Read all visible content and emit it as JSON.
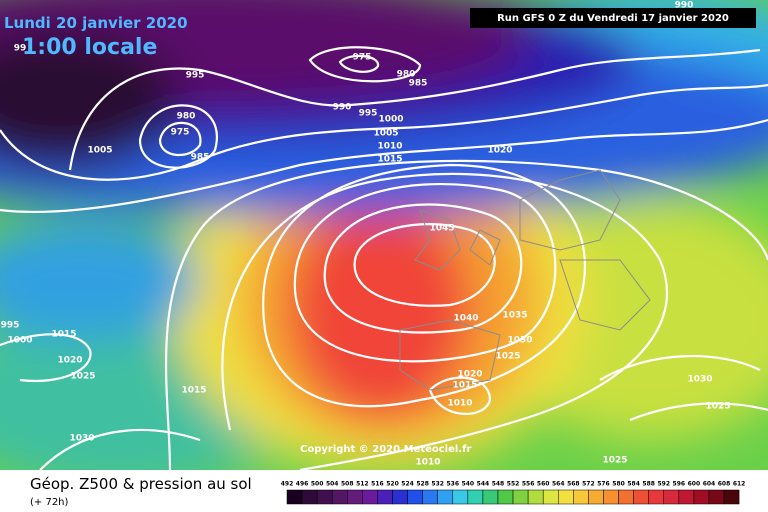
{
  "header": {
    "date": "Lundi 20 janvier 2020",
    "time": "1:00 locale",
    "run": "Run GFS 0 Z du Vendredi 17 janvier 2020"
  },
  "copyright": "Copyright © 2020 Meteociel.fr",
  "footer": {
    "title": "Géop. Z500 & pression au sol",
    "lead": "(+ 72h)"
  },
  "isobars": [
    975,
    980,
    985,
    995,
    980,
    975,
    985,
    1005,
    990,
    995,
    1000,
    1005,
    1010,
    1015,
    1020,
    1045,
    1040,
    1035,
    1030,
    1025,
    1020,
    1015,
    1010,
    1015,
    1025,
    1020,
    1000,
    995,
    1015,
    1030,
    1030,
    1025,
    1025,
    1010,
    990,
    99
  ],
  "scale": [
    492,
    496,
    500,
    504,
    508,
    512,
    516,
    520,
    524,
    528,
    532,
    536,
    540,
    544,
    548,
    552,
    556,
    560,
    564,
    568,
    572,
    576,
    580,
    584,
    588,
    592,
    596,
    600,
    604,
    608,
    612
  ]
}
